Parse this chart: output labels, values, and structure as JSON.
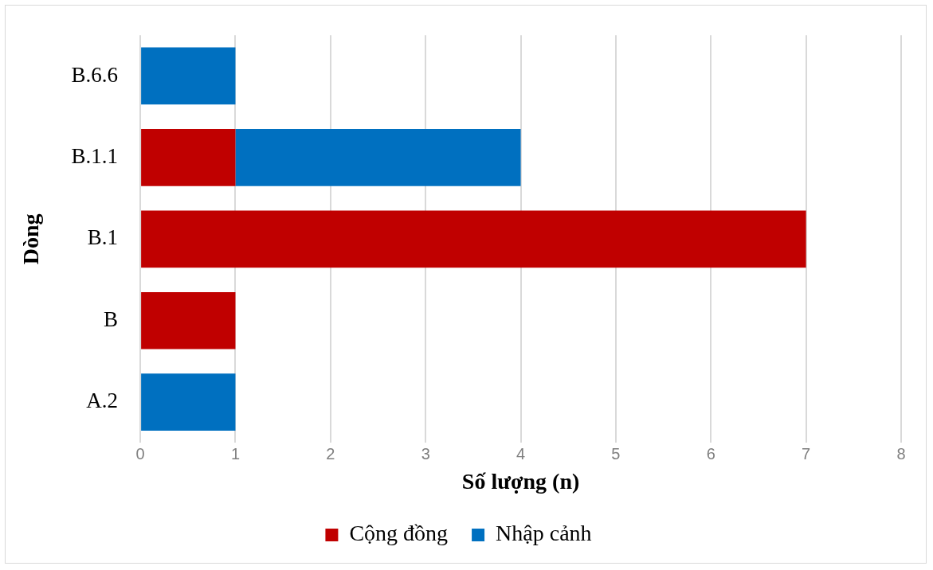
{
  "chart_data": {
    "type": "bar",
    "orientation": "horizontal",
    "stacked": true,
    "xlabel": "Số lượng (n)",
    "ylabel": "Dòng",
    "categories": [
      "B.6.6",
      "B.1.1",
      "B.1",
      "B",
      "A.2"
    ],
    "series": [
      {
        "name": "Cộng đồng",
        "color": "#c00000",
        "values": [
          null,
          1,
          7,
          1,
          null
        ]
      },
      {
        "name": "Nhập cảnh",
        "color": "#0070c0",
        "values": [
          1,
          3,
          null,
          null,
          1
        ]
      }
    ],
    "xlim": [
      0,
      8
    ],
    "xticks": [
      0,
      1,
      2,
      3,
      4,
      5,
      6,
      7,
      8
    ],
    "grid": "x",
    "legend": "bottom"
  }
}
